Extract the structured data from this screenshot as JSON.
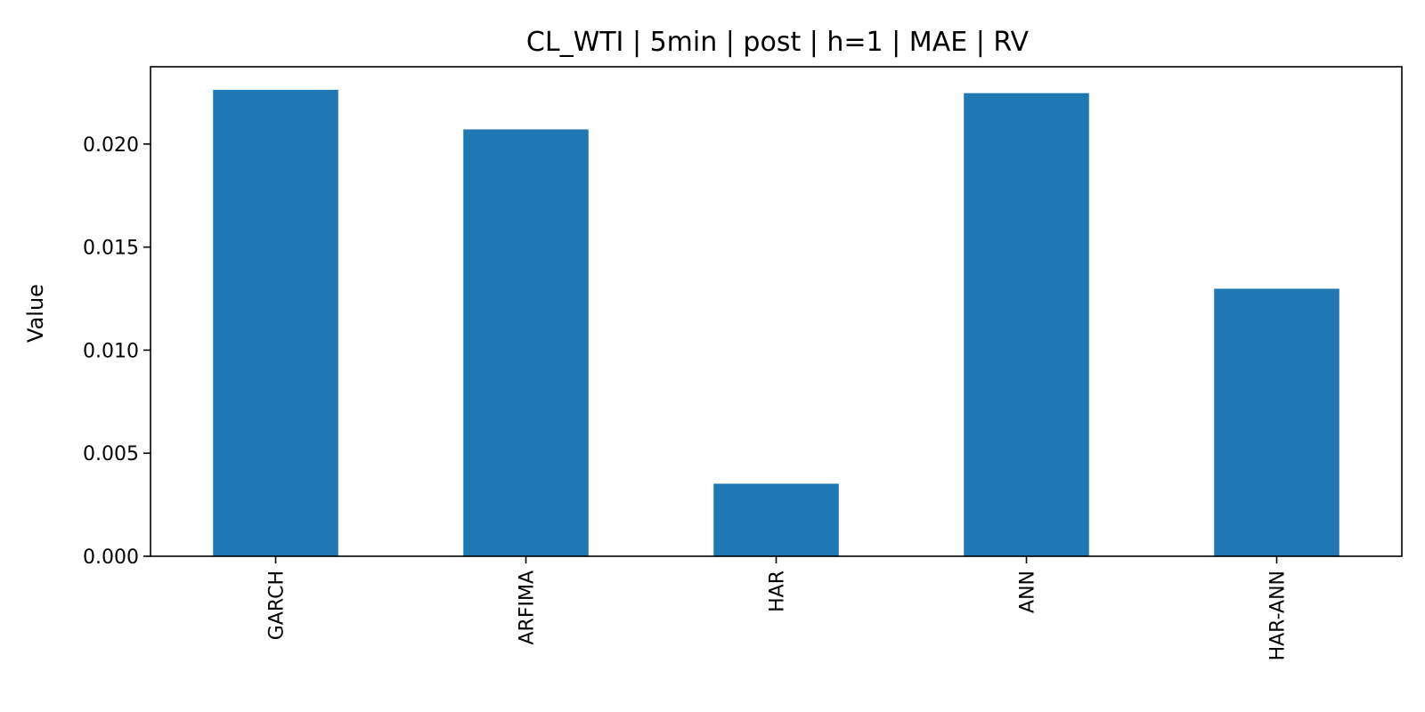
{
  "chart_data": {
    "type": "bar",
    "title": "CL_WTI | 5min | post | h=1 | MAE | RV",
    "xlabel": "",
    "ylabel": "Value",
    "categories": [
      "GARCH",
      "ARFIMA",
      "HAR",
      "ANN",
      "HAR-ANN"
    ],
    "values": [
      0.02263,
      0.02071,
      0.00352,
      0.02247,
      0.01298
    ],
    "ylim": [
      0,
      0.02375
    ],
    "yticks": [
      0,
      0.005,
      0.01,
      0.015,
      0.02
    ],
    "ytick_labels": [
      "0.000",
      "0.005",
      "0.010",
      "0.015",
      "0.020"
    ],
    "xtick_rotation": "vertical",
    "grid": false,
    "legend": "none",
    "colors": {
      "bar": "#1f77b4",
      "axes": "#000000",
      "background": "#ffffff"
    }
  }
}
